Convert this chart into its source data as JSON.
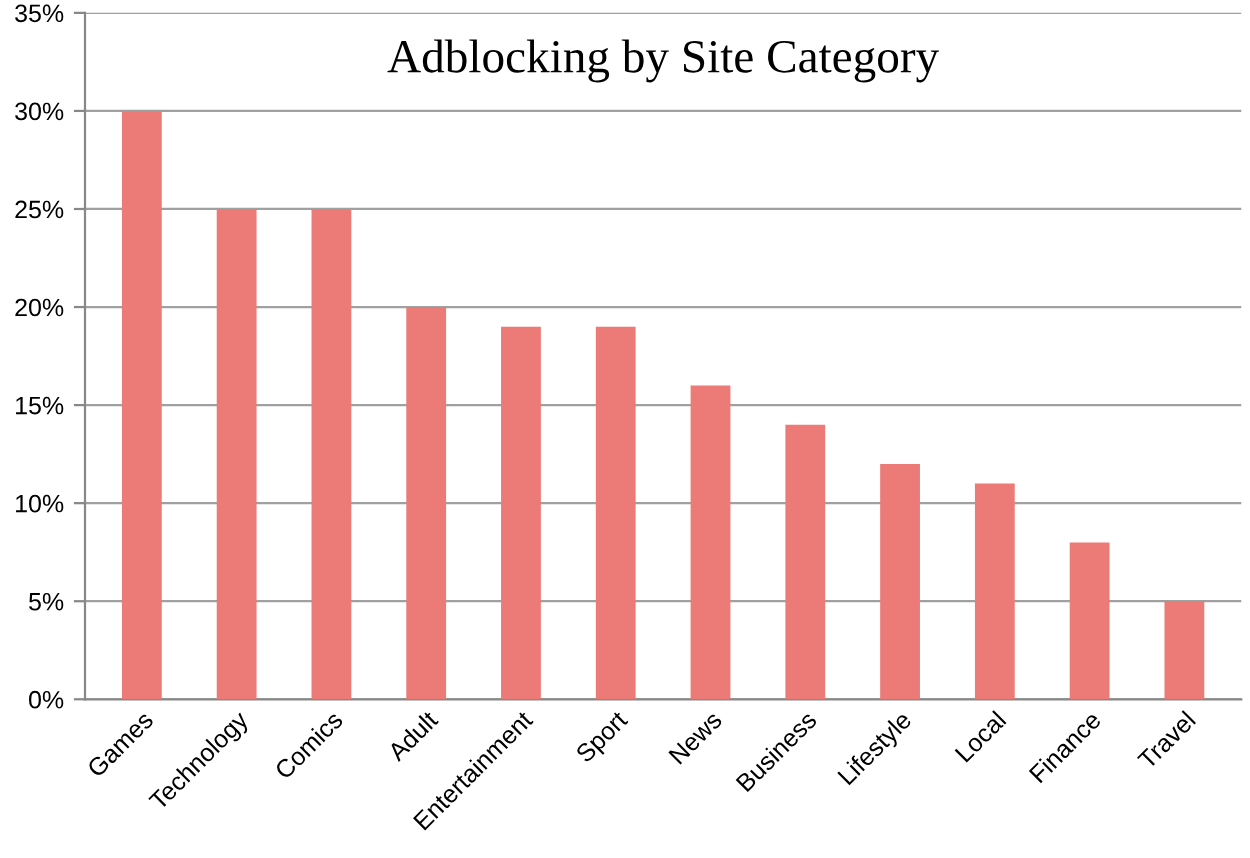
{
  "chart_data": {
    "type": "bar",
    "title": "Adblocking by Site Category",
    "categories": [
      "Games",
      "Technology",
      "Comics",
      "Adult",
      "Entertainment",
      "Sport",
      "News",
      "Business",
      "Lifestyle",
      "Local",
      "Finance",
      "Travel"
    ],
    "values": [
      30,
      25,
      25,
      20,
      19,
      19,
      16,
      14,
      12,
      11,
      8,
      5
    ],
    "color": "#ec7a76",
    "ylim": [
      0,
      35
    ],
    "yticks": [
      {
        "value": 0,
        "label": "0%"
      },
      {
        "value": 5,
        "label": "5%"
      },
      {
        "value": 10,
        "label": "10%"
      },
      {
        "value": 15,
        "label": "15%"
      },
      {
        "value": 20,
        "label": "20%"
      },
      {
        "value": 25,
        "label": "25%"
      },
      {
        "value": 30,
        "label": "30%"
      },
      {
        "value": 35,
        "label": "35%"
      }
    ],
    "grid": "y"
  }
}
